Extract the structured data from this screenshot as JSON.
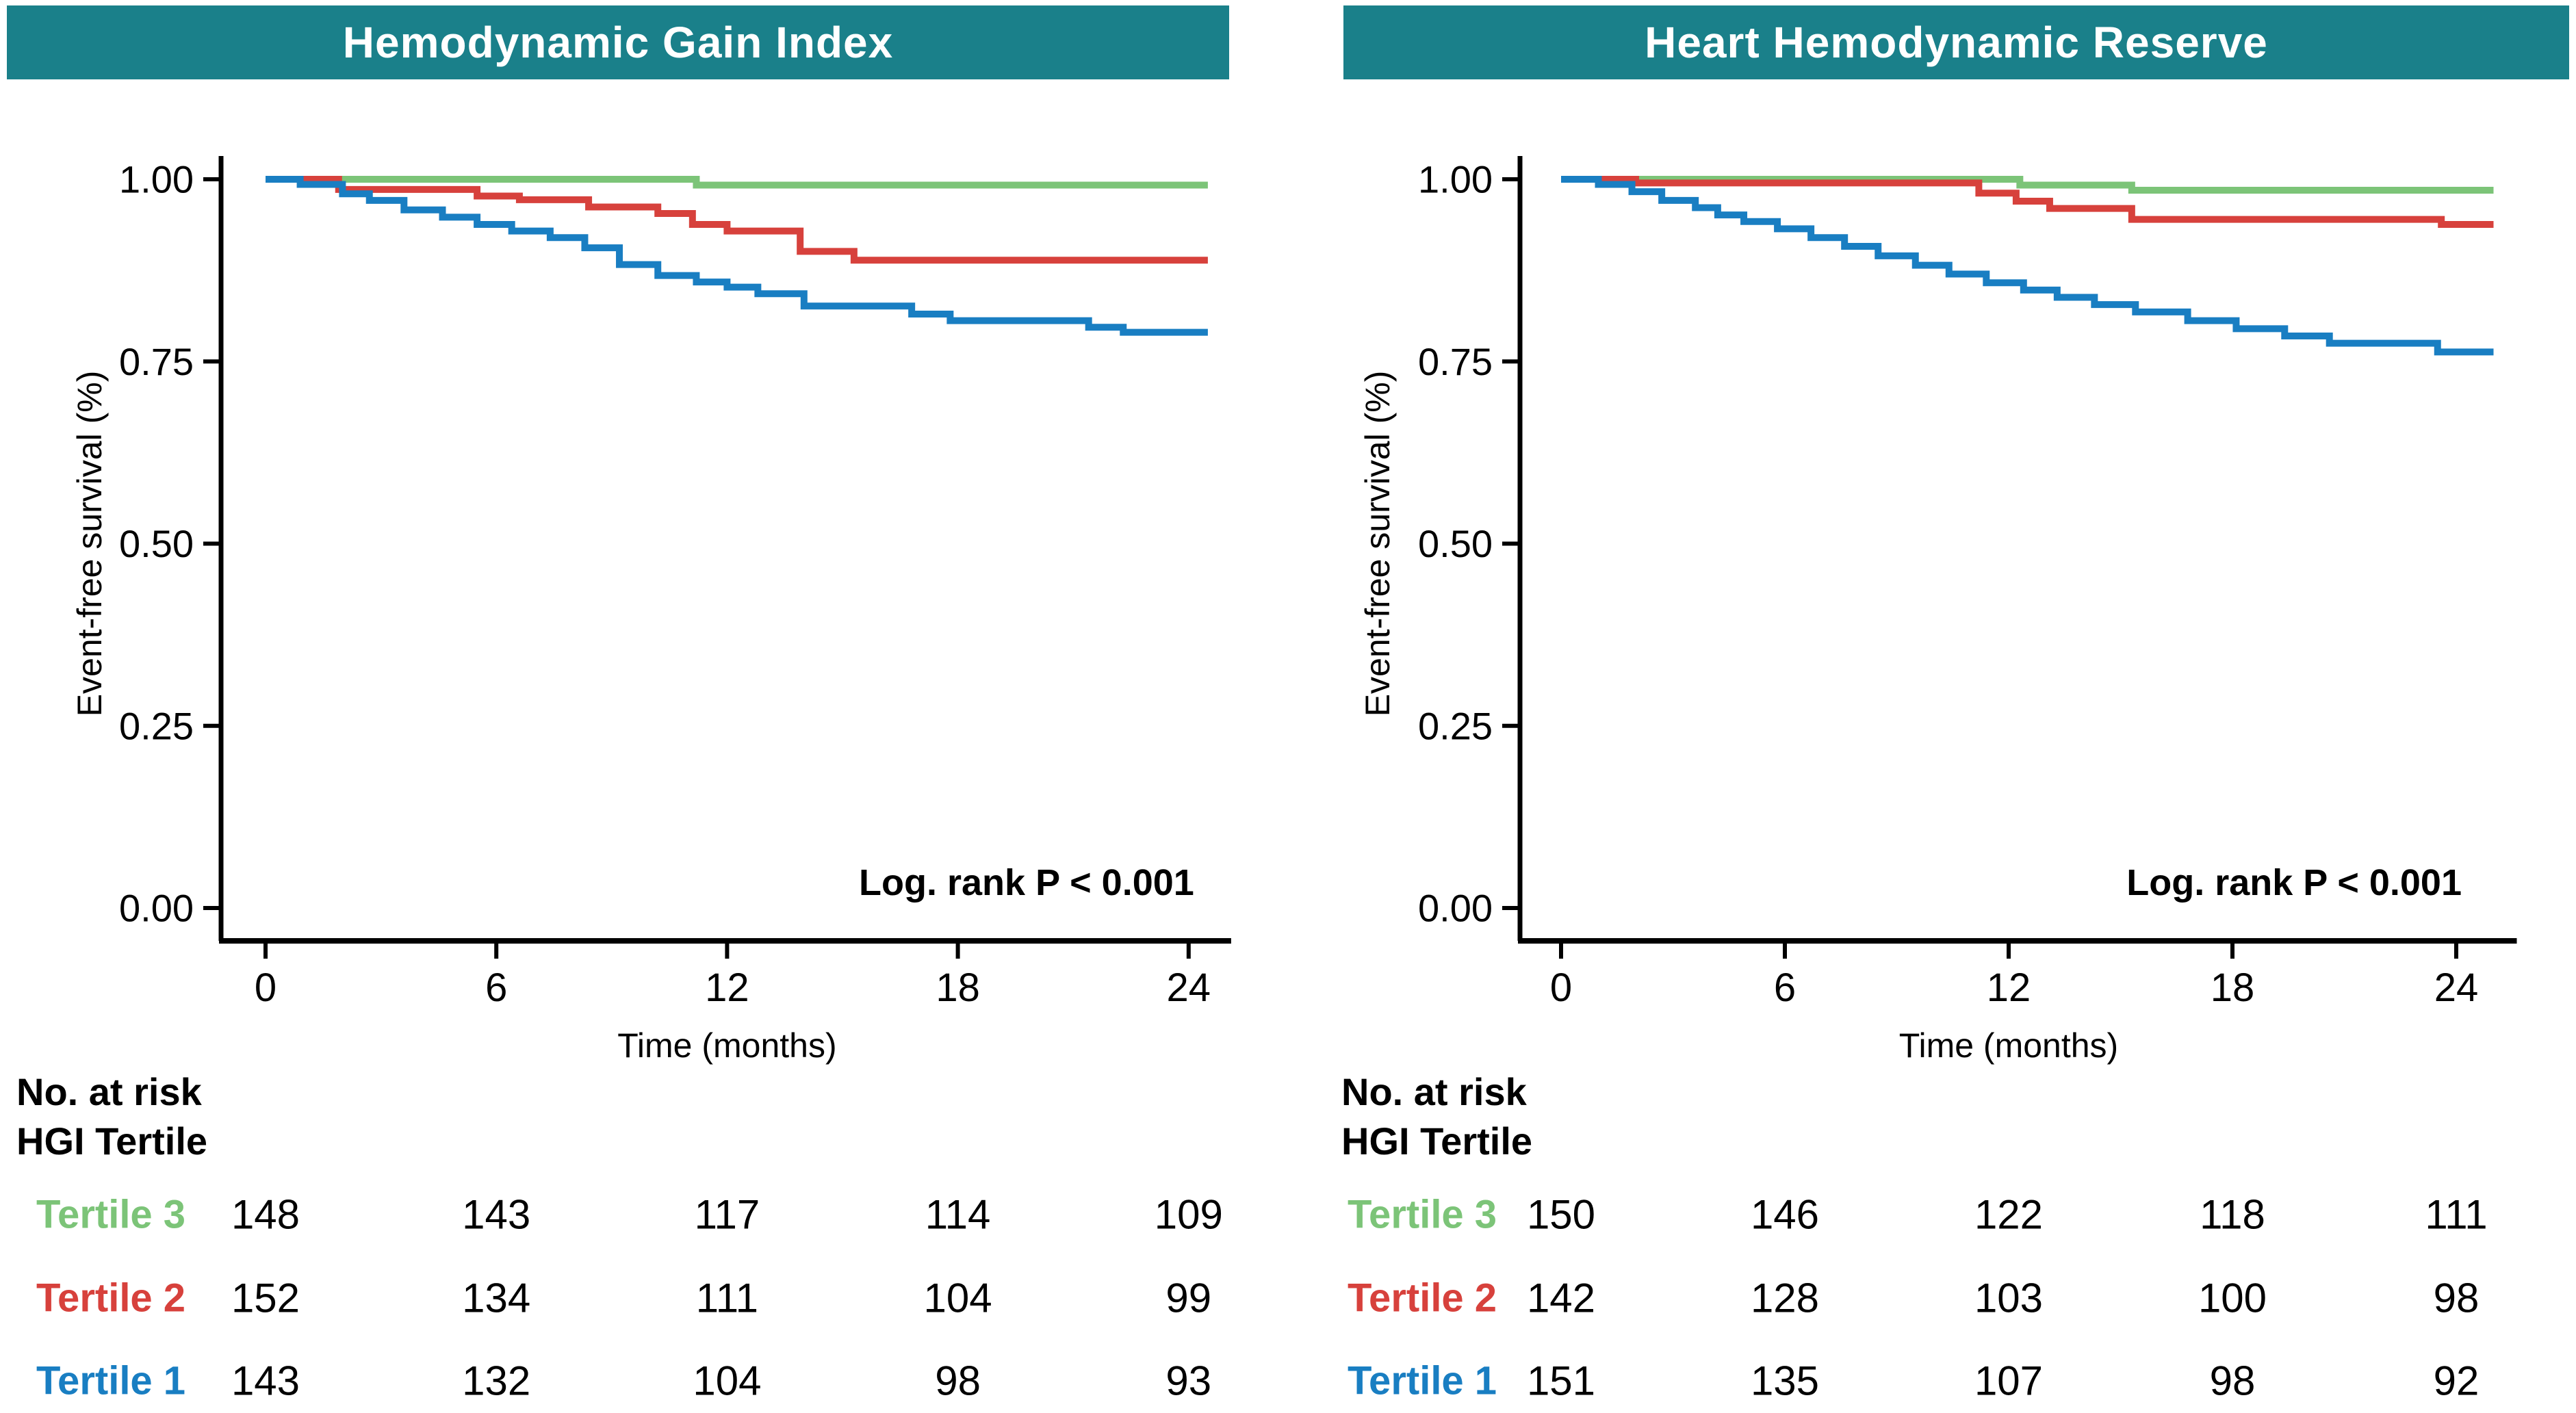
{
  "figure": {
    "background": "#ffffff",
    "banner_color": "#1A808A",
    "text_color": "#000000"
  },
  "chart_data": [
    {
      "type": "line",
      "subtype": "kaplan-meier-step",
      "title": "Hemodynamic Gain Index",
      "banner_color": "#1A808A",
      "xlabel": "Time (months)",
      "ylabel": "Event-free survival (%)",
      "annotation": "Log. rank P < 0.001",
      "x_ticks": [
        "0",
        "6",
        "12",
        "18",
        "24"
      ],
      "x_tick_values": [
        0,
        6,
        12,
        18,
        24
      ],
      "y_ticks": [
        "1.00",
        "0.75",
        "0.50",
        "0.25",
        "0.00"
      ],
      "y_tick_values": [
        1.0,
        0.75,
        0.5,
        0.25,
        0.0
      ],
      "xlim": [
        0,
        24
      ],
      "ylim": [
        0,
        1
      ],
      "grid": false,
      "legend_position": "risk-table",
      "series": [
        {
          "name": "Tertile 3",
          "color": "#7CC478",
          "steps": [
            [
              0,
              1.0
            ],
            [
              11.2,
              0.992
            ]
          ]
        },
        {
          "name": "Tertile 2",
          "color": "#D7413C",
          "steps": [
            [
              0,
              1.0
            ],
            [
              1.9,
              0.986
            ],
            [
              5.5,
              0.977
            ],
            [
              6.6,
              0.972
            ],
            [
              8.4,
              0.962
            ],
            [
              10.2,
              0.953
            ],
            [
              11.1,
              0.938
            ],
            [
              12.0,
              0.929
            ],
            [
              13.9,
              0.901
            ],
            [
              15.3,
              0.889
            ]
          ]
        },
        {
          "name": "Tertile 1",
          "color": "#197EC2",
          "steps": [
            [
              0,
              1.0
            ],
            [
              0.9,
              0.993
            ],
            [
              2.0,
              0.98
            ],
            [
              2.7,
              0.971
            ],
            [
              3.6,
              0.958
            ],
            [
              4.6,
              0.948
            ],
            [
              5.5,
              0.938
            ],
            [
              6.4,
              0.929
            ],
            [
              7.4,
              0.92
            ],
            [
              8.3,
              0.906
            ],
            [
              9.2,
              0.883
            ],
            [
              10.2,
              0.868
            ],
            [
              11.2,
              0.859
            ],
            [
              12.0,
              0.852
            ],
            [
              12.8,
              0.843
            ],
            [
              14.0,
              0.826
            ],
            [
              16.8,
              0.815
            ],
            [
              17.8,
              0.806
            ],
            [
              21.4,
              0.797
            ],
            [
              22.3,
              0.79
            ]
          ]
        }
      ],
      "risk_table": {
        "header_line1": "No. at risk",
        "header_line2": "HGI Tertile",
        "rows": [
          {
            "label": "Tertile 3",
            "color": "#7CC478",
            "values": [
              "148",
              "143",
              "117",
              "114",
              "109"
            ]
          },
          {
            "label": "Tertile 2",
            "color": "#D7413C",
            "values": [
              "152",
              "134",
              "111",
              "104",
              "99"
            ]
          },
          {
            "label": "Tertile 1",
            "color": "#197EC2",
            "values": [
              "143",
              "132",
              "104",
              "98",
              "93"
            ]
          }
        ]
      }
    },
    {
      "type": "line",
      "subtype": "kaplan-meier-step",
      "title": "Heart Hemodynamic Reserve",
      "banner_color": "#1A808A",
      "xlabel": "Time (months)",
      "ylabel": "Event-free survival (%)",
      "annotation": "Log. rank P < 0.001",
      "x_ticks": [
        "0",
        "6",
        "12",
        "18",
        "24"
      ],
      "x_tick_values": [
        0,
        6,
        12,
        18,
        24
      ],
      "y_ticks": [
        "1.00",
        "0.75",
        "0.50",
        "0.25",
        "0.00"
      ],
      "y_tick_values": [
        1.0,
        0.75,
        0.5,
        0.25,
        0.0
      ],
      "xlim": [
        0,
        24
      ],
      "ylim": [
        0,
        1
      ],
      "grid": false,
      "legend_position": "risk-table",
      "series": [
        {
          "name": "Tertile 3",
          "color": "#7CC478",
          "steps": [
            [
              0,
              1.0
            ],
            [
              12.3,
              0.992
            ],
            [
              15.3,
              0.985
            ]
          ]
        },
        {
          "name": "Tertile 2",
          "color": "#D7413C",
          "steps": [
            [
              0,
              1.0
            ],
            [
              2.0,
              0.995
            ],
            [
              11.2,
              0.981
            ],
            [
              12.2,
              0.97
            ],
            [
              13.1,
              0.96
            ],
            [
              15.3,
              0.945
            ],
            [
              23.6,
              0.938
            ]
          ]
        },
        {
          "name": "Tertile 1",
          "color": "#197EC2",
          "steps": [
            [
              0,
              1.0
            ],
            [
              1.0,
              0.993
            ],
            [
              1.9,
              0.983
            ],
            [
              2.7,
              0.971
            ],
            [
              3.6,
              0.961
            ],
            [
              4.2,
              0.951
            ],
            [
              4.9,
              0.942
            ],
            [
              5.8,
              0.932
            ],
            [
              6.7,
              0.92
            ],
            [
              7.6,
              0.908
            ],
            [
              8.5,
              0.895
            ],
            [
              9.5,
              0.882
            ],
            [
              10.4,
              0.87
            ],
            [
              11.4,
              0.858
            ],
            [
              12.4,
              0.848
            ],
            [
              13.3,
              0.838
            ],
            [
              14.3,
              0.828
            ],
            [
              15.4,
              0.818
            ],
            [
              16.8,
              0.806
            ],
            [
              18.1,
              0.795
            ],
            [
              19.4,
              0.785
            ],
            [
              20.6,
              0.775
            ],
            [
              23.5,
              0.763
            ]
          ]
        }
      ],
      "risk_table": {
        "header_line1": "No. at risk",
        "header_line2": "HGI Tertile",
        "rows": [
          {
            "label": "Tertile 3",
            "color": "#7CC478",
            "values": [
              "150",
              "146",
              "122",
              "118",
              "111"
            ]
          },
          {
            "label": "Tertile 2",
            "color": "#D7413C",
            "values": [
              "142",
              "128",
              "103",
              "100",
              "98"
            ]
          },
          {
            "label": "Tertile 1",
            "color": "#197EC2",
            "values": [
              "151",
              "135",
              "107",
              "98",
              "92"
            ]
          }
        ]
      }
    }
  ]
}
